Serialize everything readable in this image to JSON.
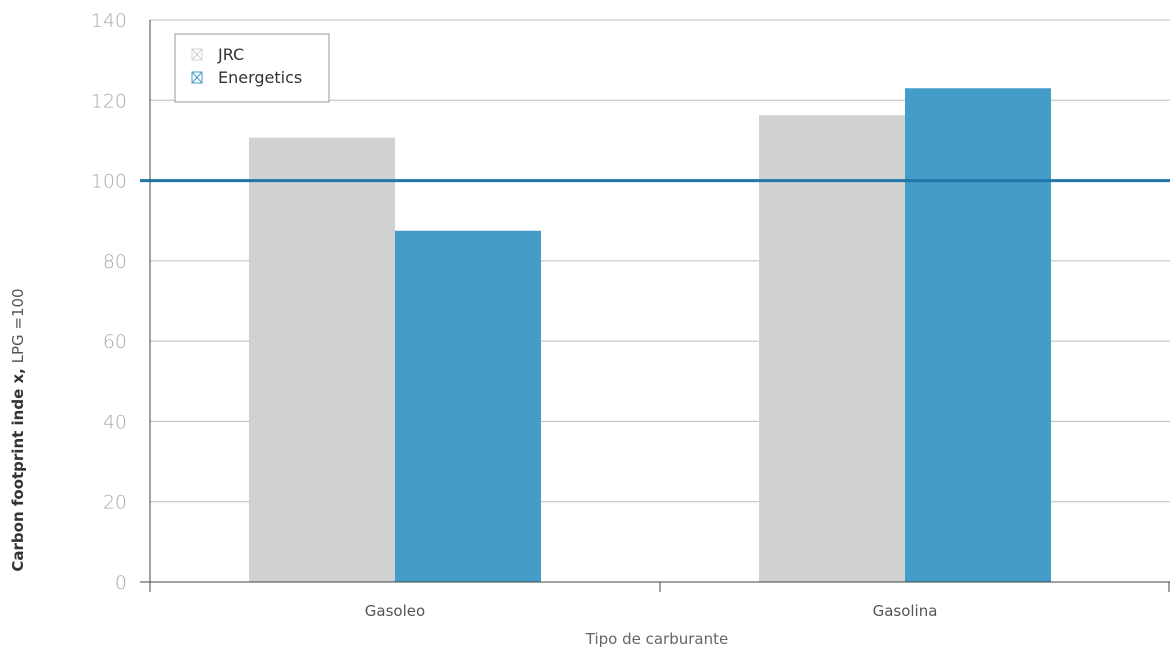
{
  "chart_data": {
    "type": "bar",
    "categories": [
      "Gasoleo",
      "Gasolina"
    ],
    "series": [
      {
        "name": "JRC",
        "values": [
          110.7,
          116.3
        ],
        "color": "#d0d1d3"
      },
      {
        "name": "Energetics",
        "values": [
          87.5,
          123.0
        ],
        "color": "#449cc8"
      }
    ],
    "xlabel": "Tipo de carburante",
    "ylabel_bold": "Carbon footprint inde x,",
    "ylabel_rest": " LPG =100",
    "ylim": [
      0,
      140
    ],
    "yticks": [
      "0",
      "20",
      "40",
      "60",
      "80",
      "100",
      "120",
      "140"
    ],
    "reference_line": {
      "value": 100,
      "color": "#1f77a8"
    },
    "grid": true,
    "legend_position": "top-left"
  }
}
